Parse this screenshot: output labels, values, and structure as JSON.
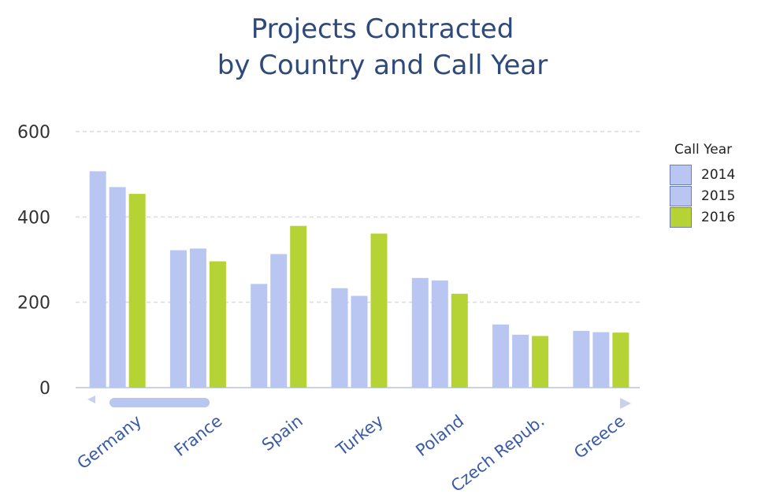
{
  "chart_data": {
    "type": "bar",
    "title": [
      "Projects Contracted",
      "by Country and Call Year"
    ],
    "legend_title": "Call Year",
    "legend_position": "right",
    "categories": [
      "Germany",
      "France",
      "Spain",
      "Turkey",
      "Poland",
      "Czech Repub.",
      "Greece"
    ],
    "series": [
      {
        "name": "2014",
        "color": "#b9c6f2",
        "values": [
          507,
          322,
          243,
          233,
          257,
          148,
          133
        ]
      },
      {
        "name": "2015",
        "color": "#b9c6f2",
        "values": [
          470,
          326,
          313,
          215,
          251,
          124,
          130
        ]
      },
      {
        "name": "2016",
        "color": "#b5d334",
        "values": [
          454,
          296,
          379,
          361,
          220,
          121,
          129
        ]
      }
    ],
    "yticks": [
      "0",
      "200",
      "400",
      "600"
    ],
    "ylim": [
      0,
      600
    ],
    "grid": true,
    "scrollbar": true
  }
}
